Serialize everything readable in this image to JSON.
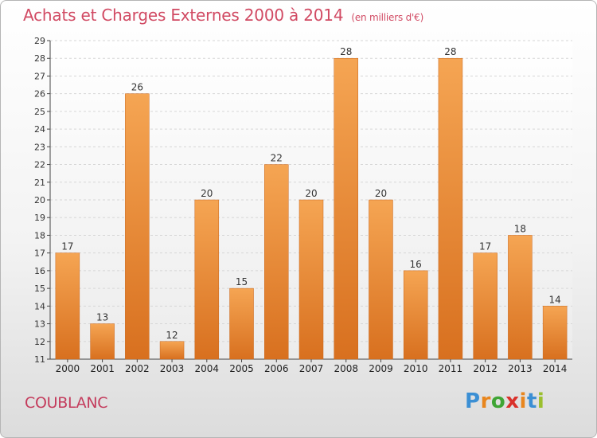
{
  "title": "Achats et Charges Externes 2000 à 2014",
  "unit": "(en milliers d'€)",
  "commune": "COUBLANC",
  "logo": {
    "letters": [
      "P",
      "r",
      "o",
      "x",
      "i",
      "t",
      "i"
    ],
    "colors": [
      "#3b8fd4",
      "#e8861e",
      "#3fa535",
      "#d9312b",
      "#e8861e",
      "#3b8fd4",
      "#9bbf2e"
    ]
  },
  "chart_data": {
    "type": "bar",
    "categories": [
      "2000",
      "2001",
      "2002",
      "2003",
      "2004",
      "2005",
      "2006",
      "2007",
      "2008",
      "2009",
      "2010",
      "2011",
      "2012",
      "2013",
      "2014"
    ],
    "values": [
      17,
      13,
      26,
      12,
      20,
      15,
      22,
      20,
      28,
      20,
      16,
      28,
      17,
      18,
      14
    ],
    "ylim": [
      11,
      29
    ],
    "yticks": [
      11,
      12,
      13,
      14,
      15,
      16,
      17,
      18,
      19,
      20,
      21,
      22,
      23,
      24,
      25,
      26,
      27,
      28,
      29
    ],
    "grid": true,
    "bar_color_top": "#f5a553",
    "bar_color_bottom": "#d8701f"
  }
}
